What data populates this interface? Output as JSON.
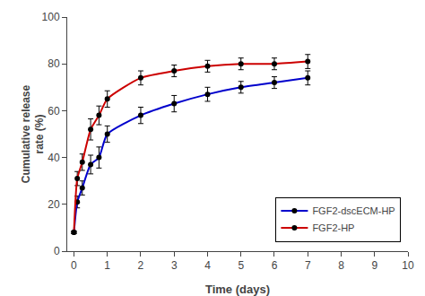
{
  "chart_data": {
    "type": "line",
    "x": [
      0,
      0.1,
      0.25,
      0.5,
      0.75,
      1.0,
      2.0,
      3.0,
      4.0,
      5.0,
      6.0,
      7.0
    ],
    "series": [
      {
        "name": "FGF2-dscECM-HP",
        "color": "#0000cc",
        "values": [
          8,
          21,
          27,
          37,
          40,
          50,
          58,
          63,
          67,
          70,
          72,
          74
        ],
        "error": [
          0.5,
          2.5,
          3.0,
          4.0,
          4.5,
          3.5,
          3.5,
          3.5,
          3.0,
          2.5,
          2.5,
          3.0
        ]
      },
      {
        "name": "FGF2-HP",
        "color": "#cc0000",
        "values": [
          8,
          31,
          38,
          52,
          58,
          65,
          74,
          77,
          79,
          80,
          80,
          81
        ],
        "error": [
          0.5,
          3.0,
          3.5,
          4.5,
          4.0,
          3.5,
          3.0,
          2.5,
          2.5,
          2.5,
          2.5,
          3.0
        ]
      }
    ],
    "xlabel": "Time (days)",
    "ylabel": "Cumulative release\nrate (%)",
    "xlim": [
      -0.2,
      10
    ],
    "ylim": [
      0,
      100
    ],
    "xticks": [
      0,
      1,
      2,
      3,
      4,
      5,
      6,
      7,
      8,
      9,
      10
    ],
    "yticks": [
      0,
      20,
      40,
      60,
      80,
      100
    ],
    "marker": "circle",
    "legend": "lower right",
    "grid": false
  }
}
